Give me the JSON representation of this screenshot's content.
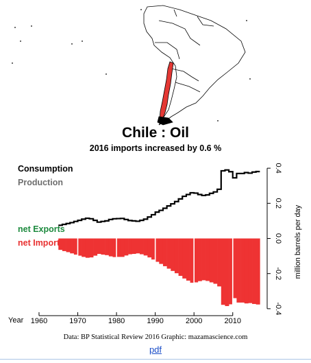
{
  "map": {
    "highlight_color": "#e43834",
    "land_color": "#ffffff",
    "border_color": "#000000"
  },
  "chart_data": {
    "type": "line",
    "title": "Chile :  Oil",
    "subtitle": "2016 imports increased by 0.6 %",
    "xlabel": "Year",
    "ylabel": "million barrels per day",
    "xlim": [
      1957,
      2018
    ],
    "ylim": [
      -0.42,
      0.42
    ],
    "x_ticks": [
      1960,
      1970,
      1980,
      1990,
      2000,
      2010
    ],
    "y_ticks": [
      -0.4,
      -0.2,
      0.0,
      0.2,
      0.4
    ],
    "legend": [
      "Consumption",
      "Production",
      "net Exports",
      "net Imports"
    ],
    "legend_placement": "left",
    "colors": {
      "consumption": "#000000",
      "production": "#6e6e6e",
      "net_exports": "#1d8a3e",
      "net_imports": "#e83030",
      "imports_fill": "#ee3333"
    },
    "years": [
      1965,
      1966,
      1967,
      1968,
      1969,
      1970,
      1971,
      1972,
      1973,
      1974,
      1975,
      1976,
      1977,
      1978,
      1979,
      1980,
      1981,
      1982,
      1983,
      1984,
      1985,
      1986,
      1987,
      1988,
      1989,
      1990,
      1991,
      1992,
      1993,
      1994,
      1995,
      1996,
      1997,
      1998,
      1999,
      2000,
      2001,
      2002,
      2003,
      2004,
      2005,
      2006,
      2007,
      2008,
      2009,
      2010,
      2011,
      2012,
      2013,
      2014,
      2015,
      2016
    ],
    "series": [
      {
        "name": "Consumption",
        "values": [
          0.075,
          0.08,
          0.085,
          0.09,
          0.097,
          0.103,
          0.11,
          0.115,
          0.112,
          0.103,
          0.093,
          0.097,
          0.1,
          0.108,
          0.112,
          0.113,
          0.114,
          0.108,
          0.102,
          0.1,
          0.098,
          0.103,
          0.11,
          0.122,
          0.135,
          0.15,
          0.16,
          0.172,
          0.185,
          0.197,
          0.21,
          0.225,
          0.24,
          0.25,
          0.26,
          0.258,
          0.25,
          0.245,
          0.248,
          0.257,
          0.265,
          0.28,
          0.385,
          0.39,
          0.38,
          0.345,
          0.37,
          0.37,
          0.375,
          0.372,
          0.378,
          0.381
        ]
      },
      {
        "name": "net Imports",
        "values": [
          -0.065,
          -0.072,
          -0.078,
          -0.085,
          -0.092,
          -0.098,
          -0.105,
          -0.11,
          -0.108,
          -0.098,
          -0.088,
          -0.092,
          -0.095,
          -0.102,
          -0.106,
          -0.105,
          -0.105,
          -0.097,
          -0.09,
          -0.088,
          -0.085,
          -0.09,
          -0.097,
          -0.108,
          -0.12,
          -0.133,
          -0.145,
          -0.158,
          -0.172,
          -0.185,
          -0.198,
          -0.213,
          -0.228,
          -0.24,
          -0.252,
          -0.25,
          -0.243,
          -0.238,
          -0.242,
          -0.25,
          -0.258,
          -0.273,
          -0.378,
          -0.385,
          -0.375,
          -0.34,
          -0.365,
          -0.365,
          -0.37,
          -0.368,
          -0.373,
          -0.376
        ]
      }
    ]
  },
  "credit": "Data: BP Statistical Review 2016    Graphic: mazamascience.com",
  "pdf_link": "pdf"
}
